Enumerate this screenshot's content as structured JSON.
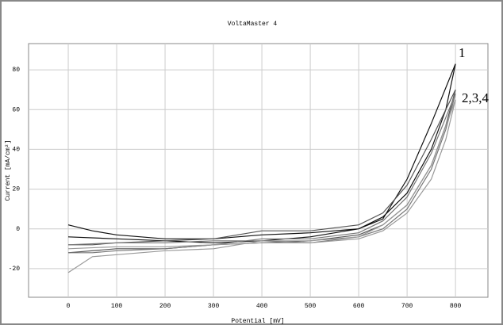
{
  "chart_data": {
    "type": "line",
    "title": "VoltaMaster 4",
    "x_label": "Potential [mV]",
    "y_label": "Current [mA/cm²]",
    "annotations": [
      "1",
      "2,3,4"
    ],
    "xlim": [
      -82,
      867
    ],
    "xticks": [
      0,
      100,
      200,
      300,
      400,
      500,
      600,
      700,
      800
    ],
    "ylim": [
      -34.4,
      93.2
    ],
    "yticks": [
      -20,
      0,
      20,
      40,
      60,
      80
    ],
    "grid": true,
    "series": [
      {
        "color": "#111111",
        "x": [
          0,
          50,
          100,
          200,
          300,
          400,
          500,
          600,
          650,
          700,
          750,
          800,
          780,
          750,
          700,
          650,
          600,
          500,
          400,
          300,
          200,
          100,
          0
        ],
        "values": [
          2,
          -1,
          -3,
          -5,
          -5,
          -3,
          -2,
          0,
          5,
          25,
          53,
          83,
          60,
          40,
          18,
          6,
          0,
          -4,
          -6,
          -7,
          -6,
          -5,
          -4
        ]
      },
      {
        "color": "#555555",
        "x": [
          0,
          50,
          100,
          200,
          300,
          400,
          500,
          600,
          650,
          700,
          750,
          800,
          780,
          750,
          700,
          650,
          600,
          500,
          400,
          300,
          200,
          100,
          0
        ],
        "values": [
          -8,
          -8,
          -7,
          -6,
          -5,
          -1,
          -1,
          2,
          8,
          22,
          45,
          70,
          52,
          32,
          12,
          2,
          -3,
          -6,
          -7,
          -8,
          -10,
          -10,
          -12
        ]
      },
      {
        "color": "#777777",
        "x": [
          0,
          50,
          100,
          200,
          300,
          400,
          500,
          600,
          650,
          700,
          750,
          800,
          780,
          750,
          700,
          650,
          600,
          500,
          400,
          300,
          200,
          100,
          0
        ],
        "values": [
          -12,
          -12,
          -11,
          -10,
          -8,
          -5,
          -5,
          -2,
          4,
          16,
          38,
          68,
          50,
          30,
          10,
          0,
          -4,
          -7,
          -6,
          -6,
          -7,
          -7,
          -8
        ]
      },
      {
        "color": "#999999",
        "x": [
          0,
          50,
          100,
          200,
          300,
          400,
          500,
          600,
          650,
          700,
          750,
          800,
          780,
          750,
          700,
          650,
          600,
          500,
          400,
          300,
          200,
          100,
          0
        ],
        "values": [
          -22,
          -14,
          -13,
          -11,
          -10,
          -6,
          -6,
          -4,
          2,
          12,
          32,
          65,
          45,
          25,
          8,
          -1,
          -5,
          -7,
          -7,
          -8,
          -9,
          -9,
          -10
        ]
      }
    ]
  }
}
